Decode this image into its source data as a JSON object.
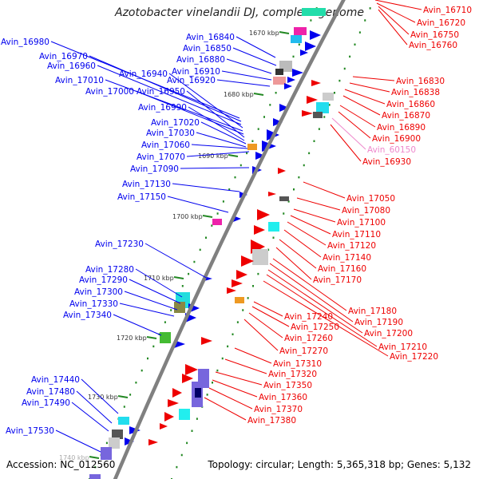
{
  "title": "Azotobacter vinelandii DJ, complete genome",
  "footer": {
    "accession": "Accession: NC_012560",
    "summary": "Topology: circular; Length: 5,365,318 bp; Genes: 5,132"
  },
  "colors": {
    "forward": "#0000ee",
    "reverse": "#ee0000",
    "other": "#ee88cc",
    "backbone": "#808080",
    "tick": "#228822"
  },
  "kbp_labels": [
    "1670 kbp",
    "1680 kbp",
    "1690 kbp",
    "1700 kbp",
    "1710 kbp",
    "1720 kbp",
    "1730 kbp",
    "1740 kbp"
  ],
  "left_genes": [
    "Avin_16840",
    "Avin_16850",
    "Avin_16880",
    "Avin_16910",
    "Avin_16920",
    "Avin_16980",
    "Avin_16970",
    "Avin_16960",
    "Avin_16940",
    "Avin_17010",
    "Avin_17000",
    "Avin_16950",
    "Avin_16990",
    "Avin_17020",
    "Avin_17030",
    "Avin_17060",
    "Avin_17070",
    "Avin_17090",
    "Avin_17130",
    "Avin_17150",
    "Avin_17230",
    "Avin_17280",
    "Avin_17290",
    "Avin_17300",
    "Avin_17330",
    "Avin_17340",
    "Avin_17440",
    "Avin_17480",
    "Avin_17490",
    "Avin_17530"
  ],
  "right_genes": [
    "Avin_16710",
    "Avin_16720",
    "Avin_16750",
    "Avin_16760",
    "Avin_16830",
    "Avin_16838",
    "Avin_16860",
    "Avin_16870",
    "Avin_16890",
    "Avin_16900",
    "Avin_60150",
    "Avin_16930",
    "Avin_17050",
    "Avin_17080",
    "Avin_17100",
    "Avin_17110",
    "Avin_17120",
    "Avin_17140",
    "Avin_17160",
    "Avin_17170",
    "Avin_17180",
    "Avin_17190",
    "Avin_17240",
    "Avin_17200",
    "Avin_17250",
    "Avin_17210",
    "Avin_17260",
    "Avin_17220",
    "Avin_17270",
    "Avin_17310",
    "Avin_17320",
    "Avin_17350",
    "Avin_17360",
    "Avin_17370",
    "Avin_17380"
  ]
}
